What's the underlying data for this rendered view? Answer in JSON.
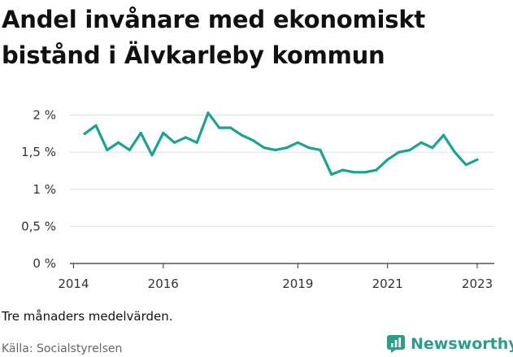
{
  "title_lines": [
    "Andel invånare med ekonomiskt",
    "bistånd i Älvkarleby kommun"
  ],
  "footnote": "Tre månaders medelvärden.",
  "source": "Källa: Socialstyrelsen",
  "brand": {
    "name": "Newsworthy",
    "icon": "bar-chart-icon",
    "color": "#2a9d8f"
  },
  "chart_data": {
    "type": "line",
    "title": "",
    "xlabel": "",
    "ylabel": "",
    "xlim": [
      2013.92,
      2023.38
    ],
    "ylim": [
      0,
      2.05
    ],
    "grid": true,
    "line_color": "#1aa394",
    "y_ticks": [
      {
        "value": 0,
        "label": "0 %"
      },
      {
        "value": 0.5,
        "label": "0,5 %"
      },
      {
        "value": 1,
        "label": "1 %"
      },
      {
        "value": 1.5,
        "label": "1,5 %"
      },
      {
        "value": 2,
        "label": "2 %"
      }
    ],
    "x_ticks": [
      {
        "value": 2014,
        "label": "2014"
      },
      {
        "value": 2016,
        "label": "2016"
      },
      {
        "value": 2019,
        "label": "2019"
      },
      {
        "value": 2021,
        "label": "2021"
      },
      {
        "value": 2023,
        "label": "2023"
      }
    ],
    "x": [
      2014.25,
      2014.5,
      2014.75,
      2015.0,
      2015.25,
      2015.5,
      2015.75,
      2016.0,
      2016.25,
      2016.5,
      2016.75,
      2017.0,
      2017.25,
      2017.5,
      2017.75,
      2018.0,
      2018.25,
      2018.5,
      2018.75,
      2019.0,
      2019.25,
      2019.5,
      2019.75,
      2020.0,
      2020.25,
      2020.5,
      2020.75,
      2021.0,
      2021.25,
      2021.5,
      2021.75,
      2022.0,
      2022.25,
      2022.5,
      2022.75,
      2023.0
    ],
    "y": [
      1.75,
      1.86,
      1.53,
      1.63,
      1.53,
      1.76,
      1.46,
      1.76,
      1.63,
      1.7,
      1.63,
      2.03,
      1.83,
      1.83,
      1.73,
      1.66,
      1.56,
      1.53,
      1.56,
      1.63,
      1.56,
      1.53,
      1.2,
      1.26,
      1.23,
      1.23,
      1.26,
      1.4,
      1.5,
      1.53,
      1.63,
      1.56,
      1.73,
      1.5,
      1.33,
      1.4
    ]
  }
}
